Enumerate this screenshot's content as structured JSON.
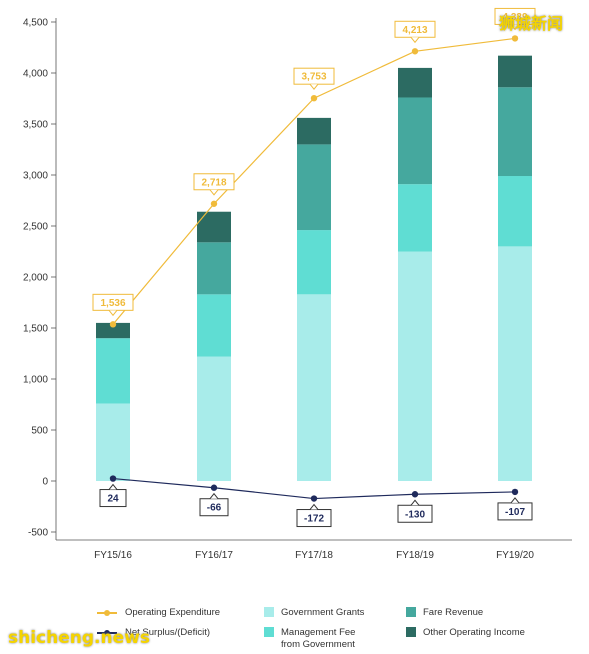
{
  "chart_data": {
    "type": "bar",
    "stacked": true,
    "categories": [
      "FY15/16",
      "FY16/17",
      "FY17/18",
      "FY18/19",
      "FY19/20"
    ],
    "ylim": [
      -500,
      4500
    ],
    "yticks": [
      -500,
      0,
      500,
      1000,
      1500,
      2000,
      2500,
      3000,
      3500,
      4000,
      4500
    ],
    "ytick_labels": [
      "-500",
      "0",
      "500",
      "1,000",
      "1,500",
      "2,000",
      "2,500",
      "3,000",
      "3,500",
      "4,000",
      "4,500"
    ],
    "grid": false,
    "legend_position": "bottom",
    "series": [
      {
        "name": "Government Grants",
        "values": [
          760,
          1220,
          1830,
          2250,
          2300
        ],
        "color": "#a8ecea"
      },
      {
        "name": "Management Fee from Government",
        "values": [
          640,
          610,
          630,
          660,
          690
        ],
        "color": "#5fddd3"
      },
      {
        "name": "Fare Revenue",
        "values": [
          0,
          510,
          840,
          850,
          870
        ],
        "color": "#45a89e"
      },
      {
        "name": "Other Operating Income",
        "values": [
          150,
          300,
          260,
          290,
          310
        ],
        "color": "#2c6b62"
      }
    ],
    "lines": [
      {
        "name": "Operating Expenditure",
        "values": [
          1536,
          2718,
          3753,
          4213,
          4339
        ],
        "labels": [
          "1,536",
          "2,718",
          "3,753",
          "4,213",
          "4,339"
        ],
        "color": "#f0bb3a"
      },
      {
        "name": "Net Surplus/(Deficit)",
        "values": [
          24,
          -66,
          -172,
          -130,
          -107
        ],
        "labels": [
          "24",
          "-66",
          "-172",
          "-130",
          "-107"
        ],
        "color": "#1f2a5c"
      }
    ]
  },
  "legend": {
    "op_exp": "Operating Expenditure",
    "net_surplus": "Net Surplus/(Deficit)",
    "gov_grants": "Government Grants",
    "mgmt_fee_line1": "Management Fee",
    "mgmt_fee_line2": "from Government",
    "fare_revenue": "Fare Revenue",
    "other_income": "Other Operating Income"
  },
  "watermarks": {
    "top": "狮城新闻",
    "bottom": "shicheng.news"
  }
}
